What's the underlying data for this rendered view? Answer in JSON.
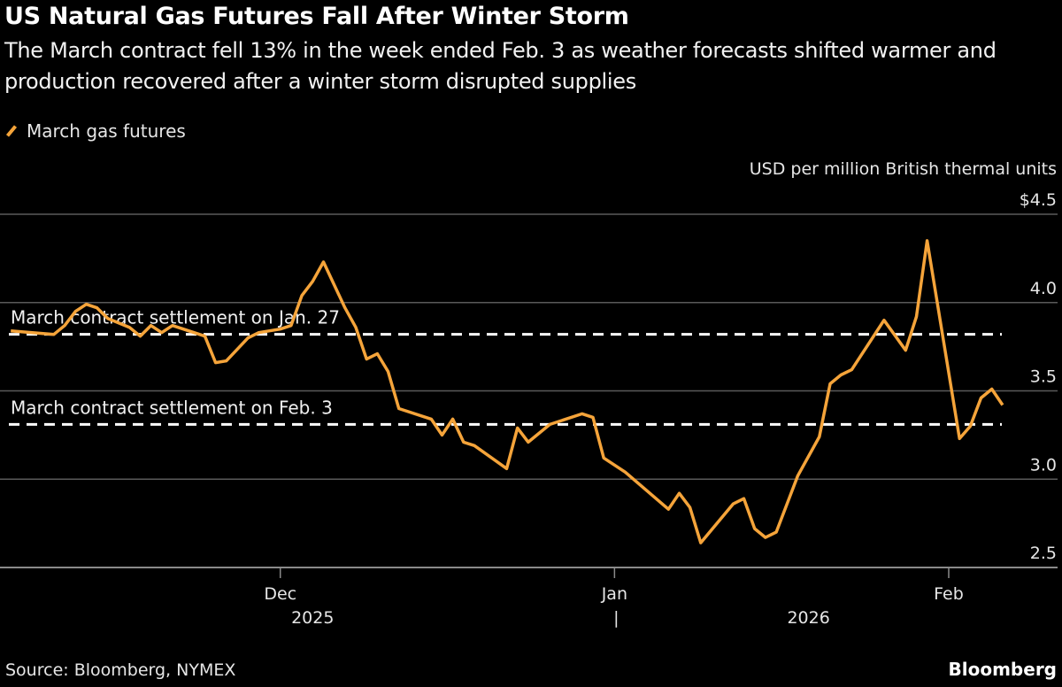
{
  "title": "US Natural Gas Futures Fall After Winter Storm",
  "subtitle": "The March contract fell 13% in the week ended Feb. 3 as weather forecasts shifted warmer and production recovered after a winter storm disrupted supplies",
  "source": "Source: Bloomberg, NYMEX",
  "brand": "Bloomberg",
  "chart_data": {
    "type": "line",
    "ylabel": "USD per million British thermal units",
    "ylim": [
      2.5,
      4.5
    ],
    "xlim": [
      "2025-11-05",
      "2026-02-12"
    ],
    "grid": true,
    "legend_placement": "top-left",
    "y_ticks": [
      {
        "value": 4.5,
        "label": "$4.5"
      },
      {
        "value": 4.0,
        "label": "4.0"
      },
      {
        "value": 3.5,
        "label": "3.5"
      },
      {
        "value": 3.0,
        "label": "3.0"
      },
      {
        "value": 2.5,
        "label": "2.5"
      }
    ],
    "x_ticks": [
      {
        "date": "2025-12-01",
        "label": "Dec"
      },
      {
        "date": "2026-01-01",
        "label": "Jan"
      },
      {
        "date": "2026-02-01",
        "label": "Feb"
      }
    ],
    "year_labels": [
      {
        "date": "2025-12-04",
        "label": "2025"
      },
      {
        "date": "2026-01-19",
        "label": "2026"
      }
    ],
    "year_separator": "|",
    "reference_lines": [
      {
        "value": 3.82,
        "label": "March contract settlement on Jan. 27"
      },
      {
        "value": 3.31,
        "label": "March contract settlement on Feb. 3"
      }
    ],
    "series": [
      {
        "name": "March gas futures",
        "color": "#f5a43a",
        "points": [
          [
            "2025-11-06",
            3.84
          ],
          [
            "2025-11-10",
            3.82
          ],
          [
            "2025-11-11",
            3.87
          ],
          [
            "2025-11-12",
            3.95
          ],
          [
            "2025-11-13",
            3.99
          ],
          [
            "2025-11-14",
            3.97
          ],
          [
            "2025-11-15",
            3.91
          ],
          [
            "2025-11-17",
            3.86
          ],
          [
            "2025-11-18",
            3.81
          ],
          [
            "2025-11-19",
            3.87
          ],
          [
            "2025-11-20",
            3.83
          ],
          [
            "2025-11-21",
            3.87
          ],
          [
            "2025-11-22",
            3.85
          ],
          [
            "2025-11-24",
            3.81
          ],
          [
            "2025-11-25",
            3.66
          ],
          [
            "2025-11-26",
            3.67
          ],
          [
            "2025-11-28",
            3.8
          ],
          [
            "2025-11-29",
            3.83
          ],
          [
            "2025-12-01",
            3.85
          ],
          [
            "2025-12-02",
            3.87
          ],
          [
            "2025-12-03",
            4.04
          ],
          [
            "2025-12-04",
            4.12
          ],
          [
            "2025-12-05",
            4.23
          ],
          [
            "2025-12-07",
            3.97
          ],
          [
            "2025-12-08",
            3.86
          ],
          [
            "2025-12-09",
            3.68
          ],
          [
            "2025-12-10",
            3.71
          ],
          [
            "2025-12-11",
            3.61
          ],
          [
            "2025-12-12",
            3.4
          ],
          [
            "2025-12-15",
            3.34
          ],
          [
            "2025-12-16",
            3.25
          ],
          [
            "2025-12-17",
            3.34
          ],
          [
            "2025-12-18",
            3.21
          ],
          [
            "2025-12-19",
            3.19
          ],
          [
            "2025-12-22",
            3.06
          ],
          [
            "2025-12-23",
            3.29
          ],
          [
            "2025-12-24",
            3.21
          ],
          [
            "2025-12-26",
            3.31
          ],
          [
            "2025-12-29",
            3.37
          ],
          [
            "2025-12-30",
            3.35
          ],
          [
            "2025-12-31",
            3.12
          ],
          [
            "2026-01-02",
            3.04
          ],
          [
            "2026-01-06",
            2.83
          ],
          [
            "2026-01-07",
            2.92
          ],
          [
            "2026-01-08",
            2.84
          ],
          [
            "2026-01-09",
            2.64
          ],
          [
            "2026-01-12",
            2.86
          ],
          [
            "2026-01-13",
            2.89
          ],
          [
            "2026-01-14",
            2.72
          ],
          [
            "2026-01-15",
            2.67
          ],
          [
            "2026-01-16",
            2.7
          ],
          [
            "2026-01-18",
            3.02
          ],
          [
            "2026-01-20",
            3.24
          ],
          [
            "2026-01-21",
            3.54
          ],
          [
            "2026-01-22",
            3.59
          ],
          [
            "2026-01-23",
            3.62
          ],
          [
            "2026-01-26",
            3.9
          ],
          [
            "2026-01-28",
            3.73
          ],
          [
            "2026-01-29",
            3.92
          ],
          [
            "2026-01-30",
            4.35
          ],
          [
            "2026-02-02",
            3.23
          ],
          [
            "2026-02-03",
            3.3
          ],
          [
            "2026-02-04",
            3.46
          ],
          [
            "2026-02-05",
            3.51
          ],
          [
            "2026-02-06",
            3.42
          ]
        ]
      }
    ]
  }
}
